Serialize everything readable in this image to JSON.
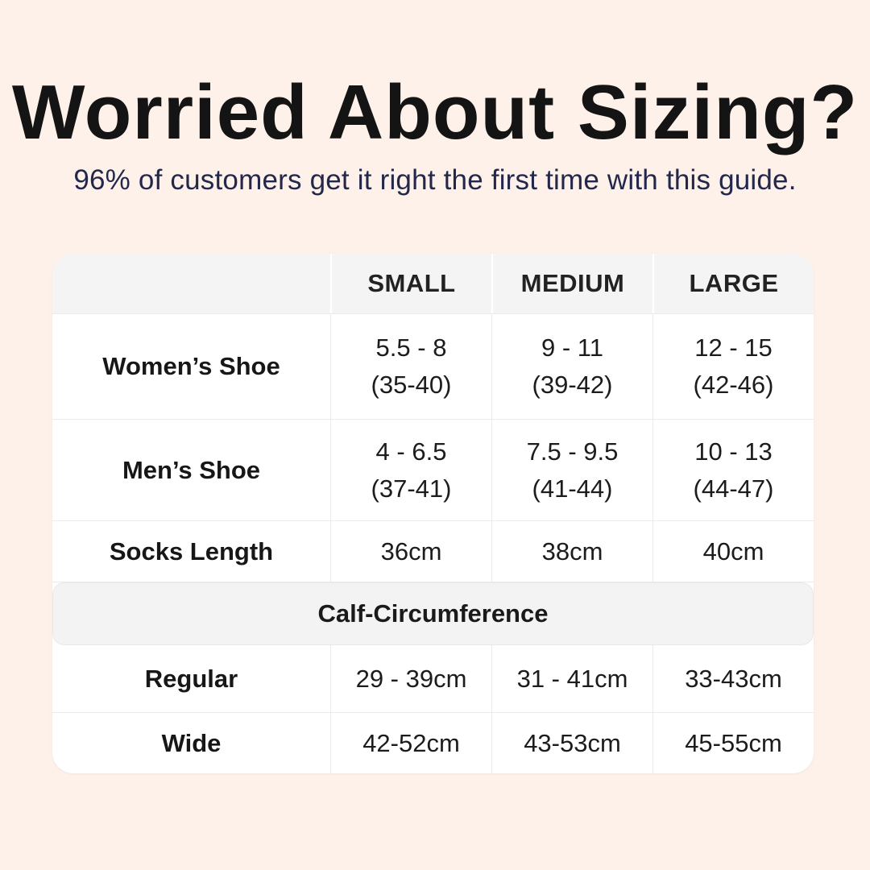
{
  "page": {
    "title": "Worried About Sizing?",
    "subtitle": "96% of customers get it right the first time with this guide."
  },
  "colors": {
    "background": "#fdf1ea",
    "card": "#ffffff",
    "header_row_bg": "#f5f4f4",
    "section_band_bg": "#f4f3f3",
    "divider": "#eceaea",
    "title_text": "#141414",
    "subtitle_text": "#23274a",
    "cell_text": "#1c1c1c"
  },
  "table": {
    "headers": {
      "blank": "",
      "small": "SMALL",
      "medium": "MEDIUM",
      "large": "LARGE"
    },
    "rows": {
      "womens": {
        "label": "Women’s Shoe",
        "small1": "5.5 - 8",
        "small2": "(35-40)",
        "medium1": "9 - 11",
        "medium2": "(39-42)",
        "large1": "12 - 15",
        "large2": "(42-46)"
      },
      "mens": {
        "label": "Men’s Shoe",
        "small1": "4 - 6.5",
        "small2": "(37-41)",
        "medium1": "7.5 - 9.5",
        "medium2": "(41-44)",
        "large1": "10 - 13",
        "large2": "(44-47)"
      },
      "socks": {
        "label": "Socks Length",
        "small": "36cm",
        "medium": "38cm",
        "large": "40cm"
      },
      "section_header": "Calf-Circumference",
      "regular": {
        "label": "Regular",
        "small": "29 - 39cm",
        "medium": "31 - 41cm",
        "large": "33-43cm"
      },
      "wide": {
        "label": "Wide",
        "small": "42-52cm",
        "medium": "43-53cm",
        "large": "45-55cm"
      }
    }
  },
  "chart_data": {
    "type": "table",
    "title": "Worried About Sizing?",
    "subtitle": "96% of customers get it right the first time with this guide.",
    "columns": [
      "",
      "SMALL",
      "MEDIUM",
      "LARGE"
    ],
    "rows": [
      [
        "Women’s Shoe",
        "5.5 - 8 (35-40)",
        "9 - 11 (39-42)",
        "12 - 15 (42-46)"
      ],
      [
        "Men’s Shoe",
        "4 - 6.5 (37-41)",
        "7.5 - 9.5 (41-44)",
        "10 - 13 (44-47)"
      ],
      [
        "Socks Length",
        "36cm",
        "38cm",
        "40cm"
      ],
      [
        "Calf-Circumference",
        "",
        "",
        ""
      ],
      [
        "Regular",
        "29 - 39cm",
        "31 - 41cm",
        "33-43cm"
      ],
      [
        "Wide",
        "42-52cm",
        "43-53cm",
        "45-55cm"
      ]
    ]
  }
}
